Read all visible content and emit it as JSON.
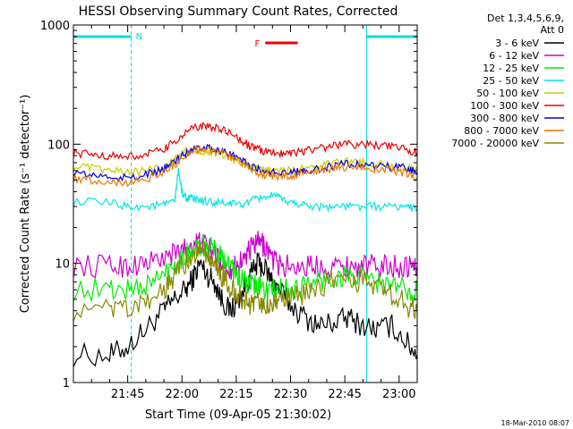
{
  "chart_data": {
    "type": "line",
    "title": "HESSI Observing Summary Count Rates, Corrected",
    "xlabel": "Start Time (09-Apr-05 21:30:02)",
    "ylabel": "Corrected Count Rate (s⁻¹ detector⁻¹)",
    "x_unit": "minutes after 21:30:02 UT",
    "xlim": [
      0,
      95
    ],
    "ylim": [
      1,
      1000
    ],
    "y_scale": "log",
    "x_ticks": [
      "21:45",
      "22:00",
      "22:15",
      "22:30",
      "22:45",
      "23:00"
    ],
    "x_tick_values": [
      15,
      30,
      45,
      60,
      75,
      90
    ],
    "y_ticks": [
      "1",
      "10",
      "100",
      "1000"
    ],
    "y_tick_values": [
      1,
      10,
      100,
      1000
    ],
    "legend_header": [
      "Det 1,3,4,5,6,9,",
      "Att 0"
    ],
    "legend_position": "right, outside plot",
    "annotations": {
      "night_label": "N",
      "flare_label": "F"
    },
    "night_intervals": [
      [
        0,
        16
      ],
      [
        81,
        95
      ]
    ],
    "flare_interval": [
      53,
      62
    ],
    "footer_date": "18-Mar-2010 08:07",
    "series": [
      {
        "name": "3 - 6 keV",
        "color": "#000000",
        "x": [
          0,
          10,
          15,
          20,
          25,
          28,
          31,
          33,
          35,
          37,
          39,
          41,
          43,
          45,
          47,
          49,
          51,
          53,
          55,
          57,
          60,
          64,
          68,
          72,
          76,
          80,
          84,
          88,
          92,
          95
        ],
        "y": [
          1.7,
          1.7,
          2.0,
          2.8,
          4.0,
          5.0,
          6.0,
          7.5,
          10,
          8.0,
          7.0,
          5.0,
          4.0,
          4.5,
          6.0,
          8.0,
          10,
          9.0,
          7.0,
          6.0,
          4.5,
          3.5,
          3.0,
          3.2,
          3.5,
          3.0,
          2.8,
          3.0,
          2.2,
          1.7
        ]
      },
      {
        "name": "6 - 12 keV",
        "color": "#cc00cc",
        "x": [
          0,
          10,
          15,
          20,
          25,
          28,
          31,
          33,
          35,
          37,
          39,
          41,
          43,
          45,
          47,
          49,
          51,
          53,
          55,
          57,
          60,
          64,
          68,
          72,
          76,
          80,
          84,
          88,
          92,
          95
        ],
        "y": [
          9.5,
          9.5,
          9.5,
          10,
          11,
          12,
          13.5,
          14.5,
          15,
          14,
          12,
          10,
          9.0,
          9.5,
          11,
          13,
          15,
          14,
          11,
          9.5,
          9.5,
          9.5,
          9.5,
          9.5,
          9.5,
          9.5,
          9.5,
          9.5,
          9.5,
          9.5
        ]
      },
      {
        "name": "12 - 25 keV",
        "color": "#00ee00",
        "x": [
          0,
          10,
          15,
          20,
          25,
          28,
          31,
          33,
          35,
          37,
          39,
          41,
          43,
          45,
          47,
          49,
          51,
          53,
          55,
          57,
          60,
          64,
          68,
          72,
          76,
          80,
          84,
          88,
          92,
          95
        ],
        "y": [
          6.0,
          6.0,
          6.0,
          6.5,
          8.0,
          10,
          12,
          13,
          14,
          13.5,
          13,
          12,
          10,
          8.0,
          7.0,
          6.5,
          6.5,
          6.0,
          6.0,
          6.0,
          6.0,
          6.5,
          7.0,
          7.5,
          8.0,
          7.5,
          7.0,
          6.5,
          6.0,
          6.0
        ]
      },
      {
        "name": "25 - 50 keV",
        "color": "#00e5e5",
        "x": [
          0,
          10,
          15,
          20,
          25,
          28,
          29,
          30,
          31,
          32,
          34,
          37,
          40,
          43,
          46,
          49,
          52,
          55,
          58,
          61,
          64,
          68,
          72,
          76,
          80,
          84,
          88,
          92,
          95
        ],
        "y": [
          33,
          32,
          30,
          30,
          31,
          33,
          60,
          40,
          36,
          35,
          34,
          33,
          32,
          32,
          31,
          33,
          36,
          37,
          34,
          32,
          31,
          30,
          30,
          30,
          30,
          30,
          30,
          30,
          29
        ]
      },
      {
        "name": "50 - 100 keV",
        "color": "#cccc00",
        "x": [
          0,
          5,
          10,
          15,
          20,
          25,
          28,
          30,
          33,
          36,
          39,
          42,
          45,
          48,
          51,
          54,
          57,
          60,
          64,
          68,
          72,
          76,
          80,
          84,
          88,
          92,
          95
        ],
        "y": [
          65,
          63,
          60,
          58,
          60,
          65,
          75,
          85,
          90,
          88,
          85,
          80,
          72,
          66,
          62,
          60,
          60,
          60,
          62,
          65,
          70,
          72,
          70,
          68,
          66,
          64,
          60
        ]
      },
      {
        "name": "100 - 300 keV",
        "color": "#ee0000",
        "x": [
          0,
          5,
          10,
          15,
          20,
          25,
          28,
          31,
          34,
          37,
          40,
          43,
          46,
          49,
          52,
          55,
          58,
          61,
          64,
          68,
          72,
          76,
          80,
          84,
          88,
          92,
          95
        ],
        "y": [
          85,
          82,
          80,
          78,
          82,
          90,
          105,
          125,
          140,
          140,
          135,
          125,
          110,
          95,
          88,
          85,
          85,
          86,
          88,
          92,
          98,
          100,
          100,
          98,
          95,
          90,
          85
        ]
      },
      {
        "name": "300 - 800 keV",
        "color": "#0000ee",
        "x": [
          0,
          5,
          10,
          15,
          20,
          25,
          28,
          31,
          34,
          37,
          40,
          43,
          46,
          49,
          52,
          55,
          58,
          61,
          64,
          68,
          72,
          76,
          80,
          84,
          88,
          92,
          95
        ],
        "y": [
          58,
          55,
          53,
          52,
          55,
          62,
          72,
          85,
          95,
          95,
          90,
          83,
          75,
          66,
          60,
          58,
          58,
          58,
          60,
          62,
          66,
          68,
          67,
          66,
          64,
          62,
          58
        ]
      },
      {
        "name": "800 - 7000 keV",
        "color": "#ee7700",
        "x": [
          0,
          5,
          10,
          15,
          20,
          25,
          28,
          31,
          34,
          37,
          40,
          43,
          46,
          49,
          52,
          55,
          58,
          61,
          64,
          68,
          72,
          76,
          80,
          84,
          88,
          92,
          95
        ],
        "y": [
          52,
          50,
          48,
          48,
          51,
          58,
          68,
          80,
          90,
          90,
          86,
          78,
          70,
          62,
          56,
          54,
          54,
          55,
          57,
          59,
          63,
          65,
          64,
          62,
          60,
          57,
          52
        ]
      },
      {
        "name": "7000 - 20000 keV",
        "color": "#888800",
        "x": [
          0,
          10,
          15,
          20,
          25,
          28,
          31,
          33,
          35,
          37,
          39,
          41,
          43,
          45,
          47,
          49,
          51,
          53,
          55,
          57,
          60,
          64,
          68,
          72,
          76,
          80,
          84,
          88,
          92,
          95
        ],
        "y": [
          4.0,
          4.0,
          4.0,
          4.5,
          6.0,
          8.0,
          10,
          12,
          13,
          12,
          10,
          8.0,
          6.5,
          5.5,
          5.0,
          4.5,
          4.5,
          4.5,
          4.5,
          4.5,
          5.0,
          5.5,
          6.5,
          7.0,
          7.5,
          7.0,
          6.5,
          5.5,
          4.5,
          4.0
        ]
      }
    ]
  }
}
